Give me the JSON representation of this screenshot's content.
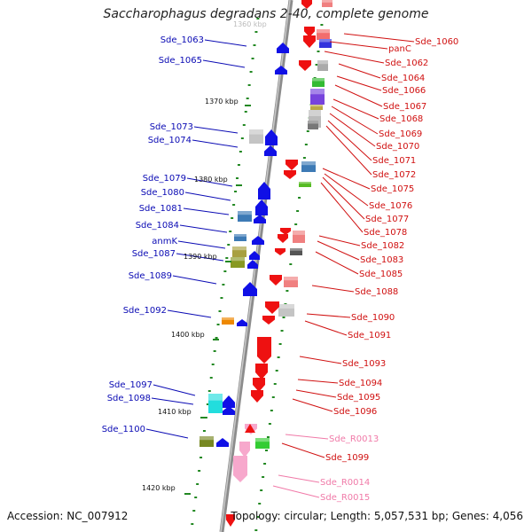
{
  "title": "Saccharophagus degradans 2-40, complete genome",
  "accession": "Accession: NC_007912",
  "topology": "Topology: circular; Length: 5,057,531 bp; Genes: 4,056",
  "cut_label": "1360 kbp",
  "colors": {
    "left_label": "#0a0ab4",
    "right_label": "#d01010",
    "rna_label": "#f07aa8",
    "forward_gene": "#ee1111",
    "reverse_gene": "#1010e6",
    "rna_gene": "#f7a8cc",
    "tick": "#228822",
    "backbone": "#909090"
  },
  "kbp_markers": [
    "1370 kbp",
    "1380 kbp",
    "1390 kbp",
    "1400 kbp",
    "1410 kbp",
    "1420 kbp"
  ],
  "left_genes": [
    {
      "label": "Sde_1063"
    },
    {
      "label": "Sde_1065"
    },
    {
      "label": "Sde_1073"
    },
    {
      "label": "Sde_1074"
    },
    {
      "label": "Sde_1079"
    },
    {
      "label": "Sde_1080"
    },
    {
      "label": "Sde_1081"
    },
    {
      "label": "Sde_1084"
    },
    {
      "label": "anmK"
    },
    {
      "label": "Sde_1087"
    },
    {
      "label": "Sde_1089"
    },
    {
      "label": "Sde_1092"
    },
    {
      "label": "Sde_1097"
    },
    {
      "label": "Sde_1098"
    },
    {
      "label": "Sde_1100"
    }
  ],
  "right_genes": [
    {
      "label": "Sde_1060",
      "type": "protein"
    },
    {
      "label": "panC",
      "type": "protein"
    },
    {
      "label": "Sde_1062",
      "type": "protein"
    },
    {
      "label": "Sde_1064",
      "type": "protein"
    },
    {
      "label": "Sde_1066",
      "type": "protein"
    },
    {
      "label": "Sde_1067",
      "type": "protein"
    },
    {
      "label": "Sde_1068",
      "type": "protein"
    },
    {
      "label": "Sde_1069",
      "type": "protein"
    },
    {
      "label": "Sde_1070",
      "type": "protein"
    },
    {
      "label": "Sde_1071",
      "type": "protein"
    },
    {
      "label": "Sde_1072",
      "type": "protein"
    },
    {
      "label": "Sde_1075",
      "type": "protein"
    },
    {
      "label": "Sde_1076",
      "type": "protein"
    },
    {
      "label": "Sde_1077",
      "type": "protein"
    },
    {
      "label": "Sde_1078",
      "type": "protein"
    },
    {
      "label": "Sde_1082",
      "type": "protein"
    },
    {
      "label": "Sde_1083",
      "type": "protein"
    },
    {
      "label": "Sde_1085",
      "type": "protein"
    },
    {
      "label": "Sde_1088",
      "type": "protein"
    },
    {
      "label": "Sde_1090",
      "type": "protein"
    },
    {
      "label": "Sde_1091",
      "type": "protein"
    },
    {
      "label": "Sde_1093",
      "type": "protein"
    },
    {
      "label": "Sde_1094",
      "type": "protein"
    },
    {
      "label": "Sde_1095",
      "type": "protein"
    },
    {
      "label": "Sde_1096",
      "type": "protein"
    },
    {
      "label": "Sde_R0013",
      "type": "rna"
    },
    {
      "label": "Sde_1099",
      "type": "protein"
    },
    {
      "label": "Sde_R0014",
      "type": "rna"
    },
    {
      "label": "Sde_R0015",
      "type": "rna"
    }
  ]
}
